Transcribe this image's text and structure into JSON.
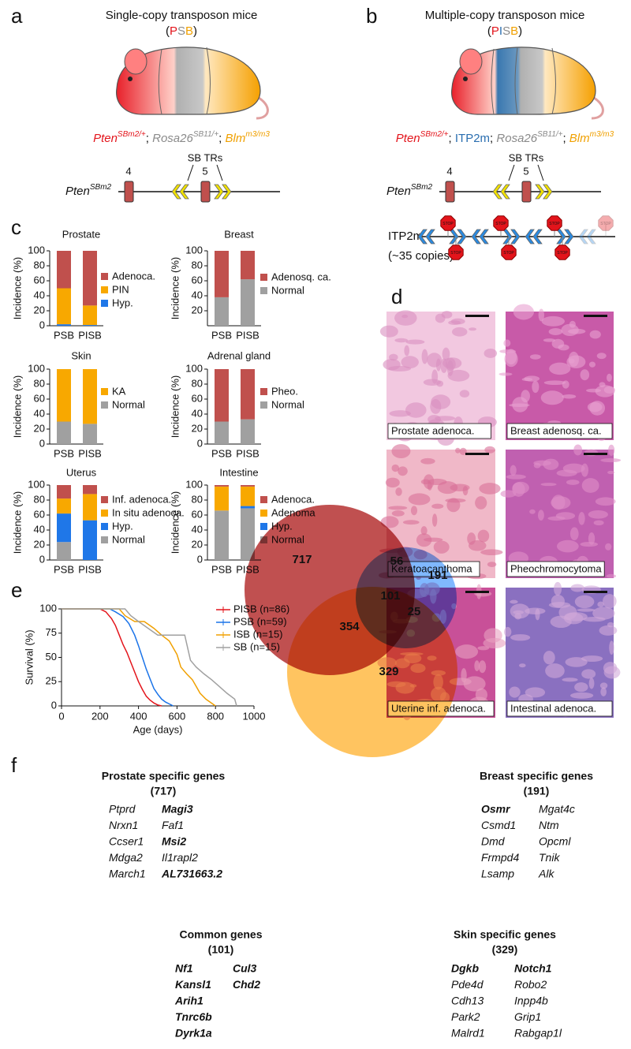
{
  "panel_labels": [
    "a",
    "b",
    "c",
    "d",
    "e",
    "f"
  ],
  "panel_a": {
    "title": "Single-copy transposon mice",
    "strain": [
      {
        "text": "(",
        "color": "#111111"
      },
      {
        "text": "P",
        "color": "#e3141b"
      },
      {
        "text": "S",
        "color": "#8a8a8a"
      },
      {
        "text": "B",
        "color": "#f0a000"
      },
      {
        "text": ")",
        "color": "#111111"
      }
    ],
    "genotype": [
      {
        "gene": "Pten",
        "sup": "SBm2/+",
        "color": "#e3141b",
        "italic": true
      },
      {
        "gene": "Rosa26",
        "sup": "SB11/+",
        "color": "#8a8a8a",
        "italic": true
      },
      {
        "gene": "Blm",
        "sup": "m3/m3",
        "color": "#f0a000",
        "italic": true
      }
    ],
    "separator": "; ",
    "allele": {
      "gene": "Pten",
      "sup": "SBm2"
    },
    "exons": [
      "4",
      "5"
    ],
    "tr_label": "SB TRs"
  },
  "panel_b": {
    "title": "Multiple-copy transposon mice",
    "strain": [
      {
        "text": "(",
        "color": "#111111"
      },
      {
        "text": "P",
        "color": "#e3141b"
      },
      {
        "text": "I",
        "color": "#2a6eb0"
      },
      {
        "text": "S",
        "color": "#8a8a8a"
      },
      {
        "text": "B",
        "color": "#f0a000"
      },
      {
        "text": ")",
        "color": "#111111"
      }
    ],
    "genotype": [
      {
        "gene": "Pten",
        "sup": "SBm2/+",
        "color": "#e3141b",
        "italic": true
      },
      {
        "gene": "ITP2m",
        "color": "#2a6eb0",
        "italic": false
      },
      {
        "gene": "Rosa26",
        "sup": "SB11/+",
        "color": "#8a8a8a",
        "italic": true
      },
      {
        "gene": "Blm",
        "sup": "m3/m3",
        "color": "#f0a000",
        "italic": true
      }
    ],
    "separator": "; ",
    "allele": {
      "gene": "Pten",
      "sup": "SBm2"
    },
    "exons": [
      "4",
      "5"
    ],
    "tr_label": "SB TRs",
    "itp2m": "ITP2m",
    "copies": "(~35 copies)",
    "stop": "STOP"
  },
  "panel_c": [
    {
      "type": "bar",
      "stacked": true,
      "title": "Prostate",
      "y_label": "Incidence (%)",
      "categories": [
        "PSB",
        "PISB"
      ],
      "ylim": [
        0,
        100
      ],
      "yticks": [
        0,
        20,
        40,
        60,
        80,
        100
      ],
      "series": [
        {
          "name": "Hyp.",
          "color": "#1f77e8",
          "values": [
            2,
            1
          ]
        },
        {
          "name": "PIN",
          "color": "#f8a800",
          "values": [
            48,
            26
          ]
        },
        {
          "name": "Adenoca.",
          "color": "#c0504d",
          "values": [
            50,
            73
          ]
        }
      ]
    },
    {
      "type": "bar",
      "stacked": true,
      "title": "Breast",
      "y_label": "Incidence (%)",
      "categories": [
        "PSB",
        "PISB"
      ],
      "ylim": [
        0,
        100
      ],
      "yticks": [
        20,
        40,
        60,
        80,
        100
      ],
      "series": [
        {
          "name": "Normal",
          "color": "#a0a0a0",
          "values": [
            38,
            62
          ]
        },
        {
          "name": "Adenosq. ca.",
          "color": "#c0504d",
          "values": [
            62,
            38
          ]
        }
      ]
    },
    {
      "type": "bar",
      "stacked": true,
      "title": "Skin",
      "y_label": "Incidence (%)",
      "categories": [
        "PSB",
        "PISB"
      ],
      "ylim": [
        0,
        100
      ],
      "yticks": [
        0,
        20,
        40,
        60,
        80,
        100
      ],
      "series": [
        {
          "name": "Normal",
          "color": "#a0a0a0",
          "values": [
            30,
            27
          ]
        },
        {
          "name": "KA",
          "color": "#f8a800",
          "values": [
            70,
            73
          ]
        }
      ]
    },
    {
      "type": "bar",
      "stacked": true,
      "title": "Adrenal gland",
      "y_label": "Incidence (%)",
      "categories": [
        "PSB",
        "PISB"
      ],
      "ylim": [
        0,
        100
      ],
      "yticks": [
        0,
        20,
        40,
        60,
        80,
        100
      ],
      "series": [
        {
          "name": "Normal",
          "color": "#a0a0a0",
          "values": [
            30,
            33
          ]
        },
        {
          "name": "Pheo.",
          "color": "#c0504d",
          "values": [
            70,
            67
          ]
        }
      ]
    },
    {
      "type": "bar",
      "stacked": true,
      "title": "Uterus",
      "y_label": "Incidence (%)",
      "categories": [
        "PSB",
        "PISB"
      ],
      "ylim": [
        0,
        100
      ],
      "yticks": [
        0,
        20,
        40,
        60,
        80,
        100
      ],
      "series": [
        {
          "name": "Normal",
          "color": "#a0a0a0",
          "values": [
            24,
            0
          ]
        },
        {
          "name": "Hyp.",
          "color": "#1f77e8",
          "values": [
            38,
            53
          ]
        },
        {
          "name": "In situ adenoca.",
          "color": "#f8a800",
          "values": [
            20,
            35
          ]
        },
        {
          "name": "Inf. adenoca.",
          "color": "#c0504d",
          "values": [
            18,
            12
          ]
        }
      ]
    },
    {
      "type": "bar",
      "stacked": true,
      "title": "Intestine",
      "y_label": "Incidence (%)",
      "categories": [
        "PSB",
        "PISB"
      ],
      "ylim": [
        0,
        100
      ],
      "yticks": [
        0,
        20,
        40,
        60,
        80,
        100
      ],
      "series": [
        {
          "name": "Normal",
          "color": "#a0a0a0",
          "values": [
            66,
            69
          ]
        },
        {
          "name": "Hyp.",
          "color": "#1f77e8",
          "values": [
            0,
            3
          ]
        },
        {
          "name": "Adenoma",
          "color": "#f8a800",
          "values": [
            32,
            26
          ]
        },
        {
          "name": "Adenoca.",
          "color": "#c0504d",
          "values": [
            2,
            2
          ]
        }
      ]
    }
  ],
  "panel_d": {
    "images": [
      "Prostate adenoca.",
      "Breast adenosq. ca.",
      "Keratoacanthoma",
      "Pheochromocytoma",
      "Uterine inf. adenoca.",
      "Intestinal adenoca."
    ]
  },
  "panel_e": {
    "type": "line",
    "x_label": "Age (days)",
    "y_label": "Survival (%)",
    "xlim": [
      0,
      1000
    ],
    "xticks": [
      0,
      200,
      400,
      600,
      800,
      1000
    ],
    "ylim": [
      0,
      100
    ],
    "yticks": [
      0,
      25,
      50,
      75,
      100
    ],
    "series": [
      {
        "name": "PISB (n=86)",
        "color": "#e3141b",
        "x": [
          0,
          200,
          230,
          260,
          280,
          300,
          320,
          340,
          360,
          380,
          400,
          420,
          440,
          460,
          480,
          500,
          520
        ],
        "values": [
          100,
          100,
          97,
          90,
          83,
          73,
          63,
          55,
          45,
          35,
          25,
          17,
          10,
          6,
          3,
          1,
          0
        ]
      },
      {
        "name": "PSB (n=59)",
        "color": "#1a73e8",
        "x": [
          0,
          250,
          280,
          320,
          350,
          380,
          400,
          420,
          440,
          460,
          480,
          500,
          520,
          540,
          560,
          580
        ],
        "values": [
          100,
          100,
          97,
          92,
          85,
          73,
          62,
          50,
          38,
          28,
          18,
          12,
          7,
          4,
          2,
          0
        ]
      },
      {
        "name": "ISB (n=15)",
        "color": "#f0a000",
        "x": [
          0,
          300,
          330,
          380,
          430,
          480,
          520,
          560,
          600,
          620,
          650,
          680,
          700,
          720,
          750,
          800
        ],
        "values": [
          100,
          100,
          93,
          87,
          87,
          80,
          73,
          67,
          53,
          40,
          33,
          27,
          20,
          13,
          7,
          0
        ]
      },
      {
        "name": "SB (n=15)",
        "color": "#a0a0a0",
        "x": [
          0,
          330,
          360,
          400,
          450,
          500,
          550,
          600,
          640,
          670,
          700,
          740,
          780,
          820,
          860,
          900,
          910
        ],
        "values": [
          100,
          100,
          93,
          87,
          80,
          73,
          73,
          73,
          73,
          47,
          40,
          33,
          27,
          20,
          13,
          7,
          0
        ]
      }
    ]
  },
  "panel_f": {
    "sets": [
      {
        "name": "Prostate",
        "color": "#c05050"
      },
      {
        "name": "Breast",
        "color": "#80b8ff"
      },
      {
        "name": "Skin",
        "color": "#ffc460"
      }
    ],
    "regions": {
      "prostate_only": 717,
      "prostate_breast": 56,
      "breast_only": 191,
      "all": 101,
      "prostate_skin": 354,
      "breast_skin": 25,
      "skin_only": 329
    },
    "gene_lists": [
      {
        "title": "Prostate specific genes",
        "count": "(717)",
        "color": "#e3141b",
        "columns": [
          [
            {
              "name": "Ptprd",
              "bold": false
            },
            {
              "name": "Nrxn1",
              "bold": false
            },
            {
              "name": "Ccser1",
              "bold": false
            },
            {
              "name": "Mdga2",
              "bold": false
            },
            {
              "name": "March1",
              "bold": false
            }
          ],
          [
            {
              "name": "Magi3",
              "bold": true
            },
            {
              "name": "Faf1",
              "bold": false
            },
            {
              "name": "Msi2",
              "bold": true
            },
            {
              "name": "Il1rapl2",
              "bold": false
            },
            {
              "name": "AL731663.2",
              "bold": true
            }
          ]
        ]
      },
      {
        "title": "Breast specific genes",
        "count": "(191)",
        "color": "#1a7ee6",
        "columns": [
          [
            {
              "name": "Osmr",
              "bold": true
            },
            {
              "name": "Csmd1",
              "bold": false
            },
            {
              "name": "Dmd",
              "bold": false
            },
            {
              "name": "Frmpd4",
              "bold": false
            },
            {
              "name": "Lsamp",
              "bold": false
            }
          ],
          [
            {
              "name": "Mgat4c",
              "bold": false
            },
            {
              "name": "Ntm",
              "bold": false
            },
            {
              "name": "Opcml",
              "bold": false
            },
            {
              "name": "Tnik",
              "bold": false
            },
            {
              "name": "Alk",
              "bold": false
            }
          ]
        ]
      },
      {
        "title": "Common genes",
        "count": "(101)",
        "color": "#111111",
        "columns": [
          [
            {
              "name": "Nf1",
              "bold": true
            },
            {
              "name": "Kansl1",
              "bold": true
            },
            {
              "name": "Arih1",
              "bold": true
            },
            {
              "name": "Tnrc6b",
              "bold": true
            },
            {
              "name": "Dyrk1a",
              "bold": true
            }
          ],
          [
            {
              "name": "Cul3",
              "bold": true
            },
            {
              "name": "Chd2",
              "bold": true
            }
          ]
        ]
      },
      {
        "title": "Skin specific genes",
        "count": "(329)",
        "color": "#e8950e",
        "columns": [
          [
            {
              "name": "Dgkb",
              "bold": true
            },
            {
              "name": "Pde4d",
              "bold": false
            },
            {
              "name": "Cdh13",
              "bold": false
            },
            {
              "name": "Park2",
              "bold": false
            },
            {
              "name": "Malrd1",
              "bold": false
            }
          ],
          [
            {
              "name": "Notch1",
              "bold": true
            },
            {
              "name": "Robo2",
              "bold": false
            },
            {
              "name": "Inpp4b",
              "bold": false
            },
            {
              "name": "Grip1",
              "bold": false
            },
            {
              "name": "Rabgap1l",
              "bold": false
            }
          ]
        ]
      }
    ]
  }
}
